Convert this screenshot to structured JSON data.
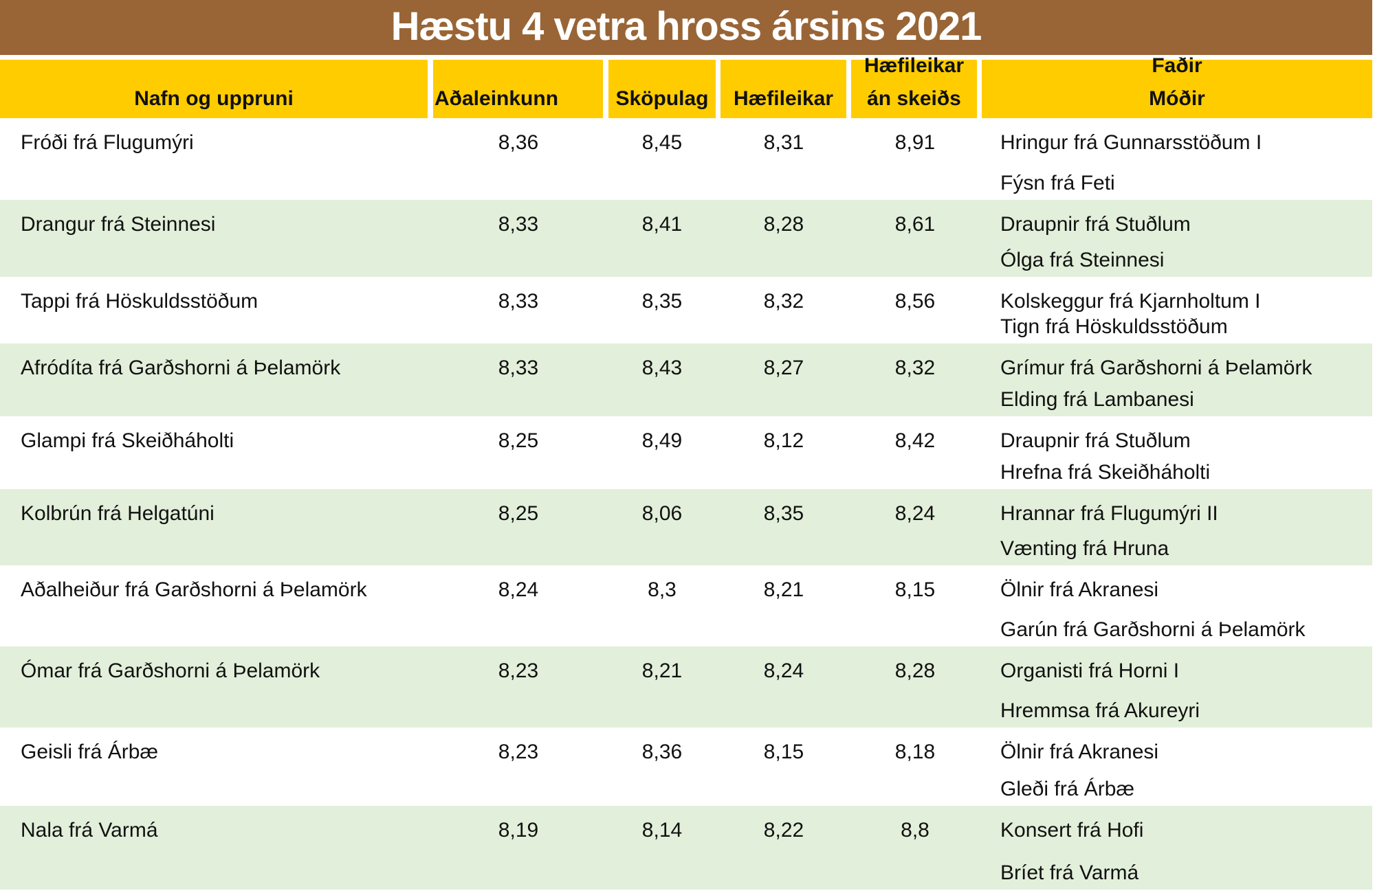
{
  "title": "Hæstu 4 vetra hross ársins 2021",
  "headers": {
    "name": "Nafn og uppruni",
    "total": "Aðaleinkunn",
    "conformation": "Sköpulag",
    "ability": "Hæfileikar",
    "ability_no_pace_1": "Hæfileikar",
    "ability_no_pace_2": "án skeiðs",
    "father": "Faðir",
    "mother": "Móðir"
  },
  "colors": {
    "title_bg": "#996536",
    "header_bg": "#FFCC00",
    "alt_row": "#E2EFDA"
  },
  "rows": [
    {
      "name": "Fróði frá Flugumýri",
      "total": "8,36",
      "conformation": "8,45",
      "ability": "8,31",
      "ability_no_pace": "8,91",
      "father": "Hringur frá Gunnarsstöðum I",
      "mother": "Fýsn frá Feti"
    },
    {
      "name": "Drangur frá Steinnesi",
      "total": "8,33",
      "conformation": "8,41",
      "ability": "8,28",
      "ability_no_pace": "8,61",
      "father": "Draupnir frá Stuðlum",
      "mother": "Ólga frá Steinnesi"
    },
    {
      "name": "Tappi frá Höskuldsstöðum",
      "total": "8,33",
      "conformation": "8,35",
      "ability": "8,32",
      "ability_no_pace": "8,56",
      "father": "Kolskeggur frá Kjarnholtum I",
      "mother": "Tign frá Höskuldsstöðum"
    },
    {
      "name": "Afródíta frá Garðshorni á Þelamörk",
      "total": "8,33",
      "conformation": "8,43",
      "ability": "8,27",
      "ability_no_pace": "8,32",
      "father": "Grímur frá Garðshorni á Þelamörk",
      "mother": "Elding frá Lambanesi"
    },
    {
      "name": "Glampi frá Skeiðháholti",
      "total": "8,25",
      "conformation": "8,49",
      "ability": "8,12",
      "ability_no_pace": "8,42",
      "father": "Draupnir frá Stuðlum",
      "mother": "Hrefna frá Skeiðháholti"
    },
    {
      "name": "Kolbrún frá Helgatúni",
      "total": "8,25",
      "conformation": "8,06",
      "ability": "8,35",
      "ability_no_pace": "8,24",
      "father": "Hrannar frá Flugumýri II",
      "mother": "Vænting frá Hruna"
    },
    {
      "name": "Aðalheiður frá Garðshorni á Þelamörk",
      "total": "8,24",
      "conformation": "8,3",
      "ability": "8,21",
      "ability_no_pace": "8,15",
      "father": "Ölnir frá Akranesi",
      "mother": "Garún frá Garðshorni á Þelamörk"
    },
    {
      "name": "Ómar frá Garðshorni á Þelamörk",
      "total": "8,23",
      "conformation": "8,21",
      "ability": "8,24",
      "ability_no_pace": "8,28",
      "father": "Organisti frá Horni I",
      "mother": "Hremmsa frá Akureyri"
    },
    {
      "name": "Geisli frá Árbæ",
      "total": "8,23",
      "conformation": "8,36",
      "ability": "8,15",
      "ability_no_pace": "8,18",
      "father": "Ölnir frá Akranesi",
      "mother": "Gleði frá Árbæ"
    },
    {
      "name": "Nala frá Varmá",
      "total": "8,19",
      "conformation": "8,14",
      "ability": "8,22",
      "ability_no_pace": "8,8",
      "father": "Konsert frá Hofi",
      "mother": "Bríet frá Varmá"
    }
  ]
}
